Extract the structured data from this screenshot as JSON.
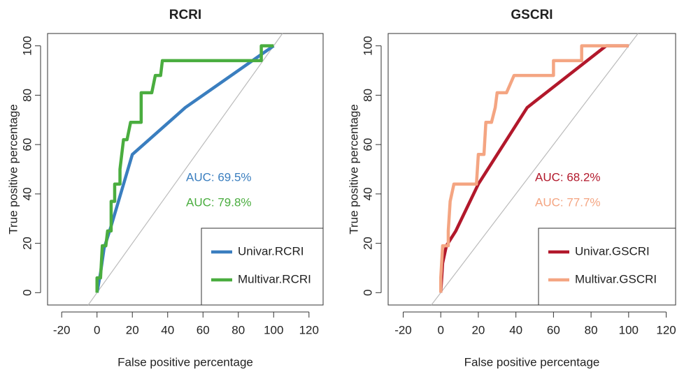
{
  "chart_data": [
    {
      "type": "line",
      "title": "RCRI",
      "x_label": "False positive percentage",
      "y_label": "True positive percentage",
      "xlim": [
        -28,
        128
      ],
      "ylim": [
        -5,
        105
      ],
      "xticks": [
        -20,
        0,
        20,
        40,
        60,
        80,
        100,
        120
      ],
      "yticks": [
        0,
        20,
        40,
        60,
        80,
        100
      ],
      "reference_line": true,
      "legend": "bottom-right",
      "annotations": [
        "AUC: 69.5%",
        "AUC: 79.8%"
      ],
      "series": [
        {
          "name": "Univar.RCRI",
          "color": "#3a7ebf",
          "x": [
            0,
            2,
            4,
            8,
            20,
            50,
            100
          ],
          "values": [
            0,
            8,
            18,
            27,
            56,
            75,
            100
          ]
        },
        {
          "name": "Multivar.RCRI",
          "color": "#4aad3f",
          "x": [
            0,
            0,
            2,
            3,
            5,
            6,
            8,
            8,
            10,
            10,
            13,
            13,
            14,
            15,
            17,
            19,
            25,
            25,
            31,
            33,
            36,
            37,
            93,
            93,
            100
          ],
          "values": [
            0,
            6,
            6,
            19,
            19,
            25,
            25,
            37,
            37,
            44,
            44,
            50,
            56,
            62,
            62,
            69,
            69,
            81,
            81,
            88,
            88,
            94,
            94,
            100,
            100
          ]
        }
      ]
    },
    {
      "type": "line",
      "title": "GSCRI",
      "x_label": "False positive percentage",
      "y_label": "True positive percentage",
      "xlim": [
        -28,
        125
      ],
      "ylim": [
        -5,
        105
      ],
      "xticks": [
        -20,
        0,
        20,
        40,
        60,
        80,
        100,
        120
      ],
      "yticks": [
        0,
        20,
        40,
        60,
        80,
        100
      ],
      "reference_line": true,
      "legend": "bottom-right",
      "annotations": [
        "AUC: 68.2%",
        "AUC: 77.7%"
      ],
      "series": [
        {
          "name": "Univar.GSCRI",
          "color": "#b2182b",
          "x": [
            0,
            1,
            3,
            8,
            20,
            46,
            88,
            100
          ],
          "values": [
            0,
            12,
            19,
            25,
            44,
            75,
            100,
            100
          ]
        },
        {
          "name": "Multivar.GSCRI",
          "color": "#f4a582",
          "x": [
            0,
            0,
            1,
            4,
            4,
            5,
            7,
            19,
            20,
            23,
            24,
            27,
            29,
            30,
            35,
            39,
            60,
            60,
            75,
            75,
            100
          ],
          "values": [
            0,
            6,
            19,
            19,
            25,
            37,
            44,
            44,
            56,
            56,
            69,
            69,
            75,
            81,
            81,
            88,
            88,
            94,
            94,
            100,
            100
          ]
        }
      ]
    }
  ]
}
